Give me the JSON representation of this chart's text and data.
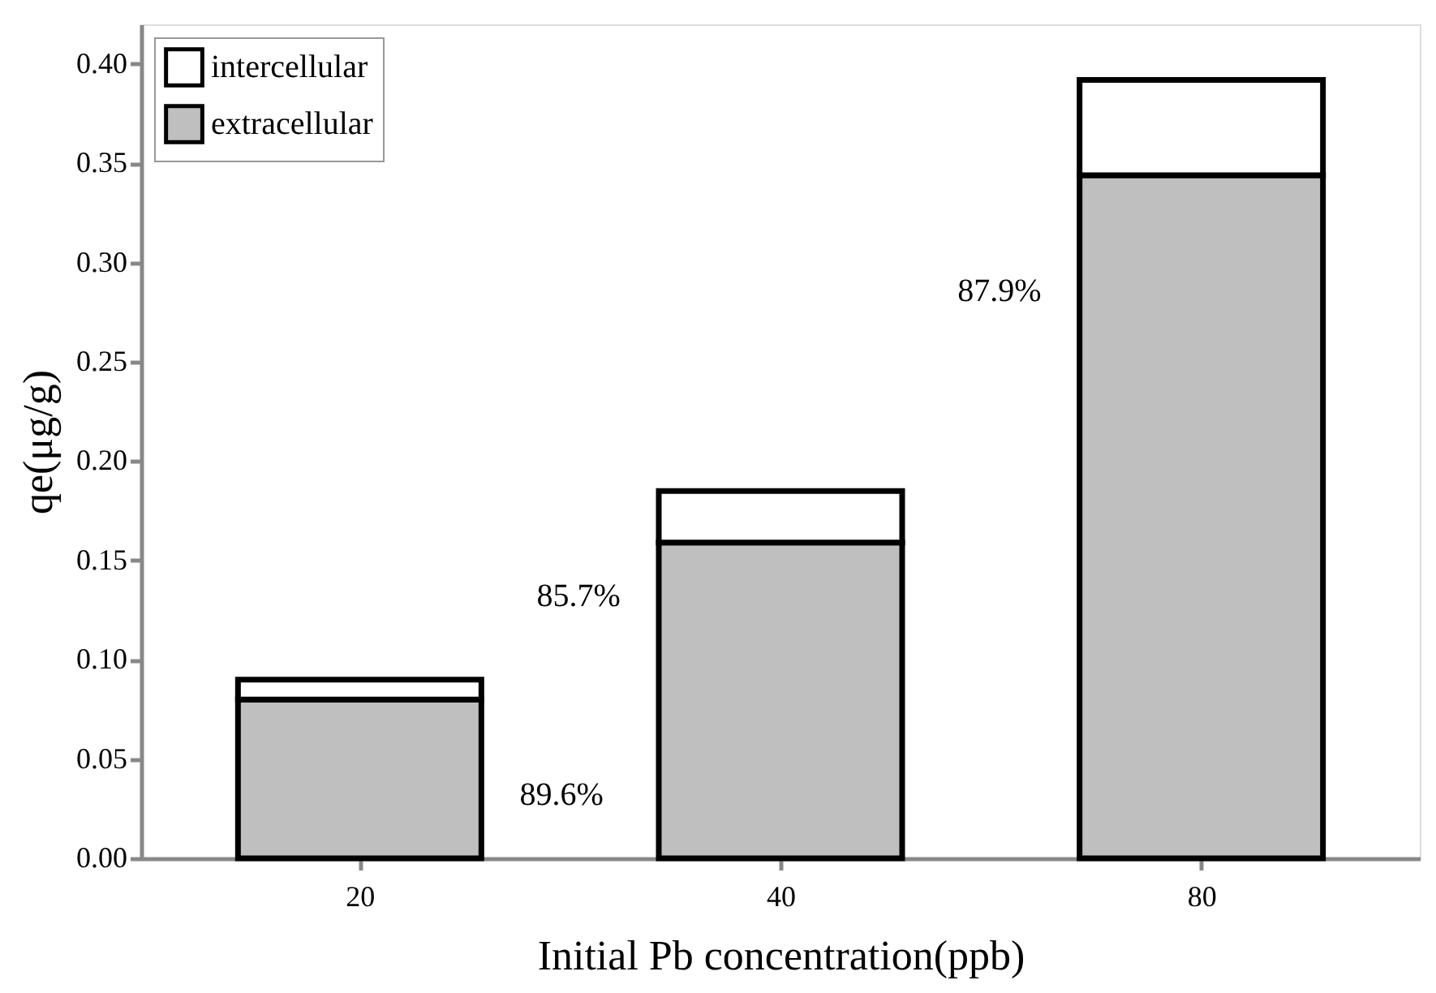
{
  "chart_data": {
    "type": "bar",
    "stacked": true,
    "xlabel": "Initial Pb concentration(ppb)",
    "ylabel": "qe(μg/g)",
    "categories": [
      "20",
      "40",
      "80"
    ],
    "series": [
      {
        "name": "extracellular",
        "color": "#bfbfbf",
        "values": [
          0.08,
          0.159,
          0.344
        ]
      },
      {
        "name": "intercellular",
        "color": "#ffffff",
        "values": [
          0.01,
          0.026,
          0.048
        ]
      }
    ],
    "ylim": [
      0,
      0.42
    ],
    "yticks": [
      {
        "value": 0,
        "label": "0.00"
      },
      {
        "value": 0.05,
        "label": "0.05"
      },
      {
        "value": 0.1,
        "label": "0.10"
      },
      {
        "value": 0.15,
        "label": "0.15"
      },
      {
        "value": 0.2,
        "label": "0.20"
      },
      {
        "value": 0.25,
        "label": "0.25"
      },
      {
        "value": 0.3,
        "label": "0.30"
      },
      {
        "value": 0.35,
        "label": "0.35"
      },
      {
        "value": 0.4,
        "label": "0.40"
      }
    ],
    "legend": "top left",
    "grid": false,
    "annotations": [
      "89.6%",
      "85.7%",
      "87.9%"
    ]
  }
}
